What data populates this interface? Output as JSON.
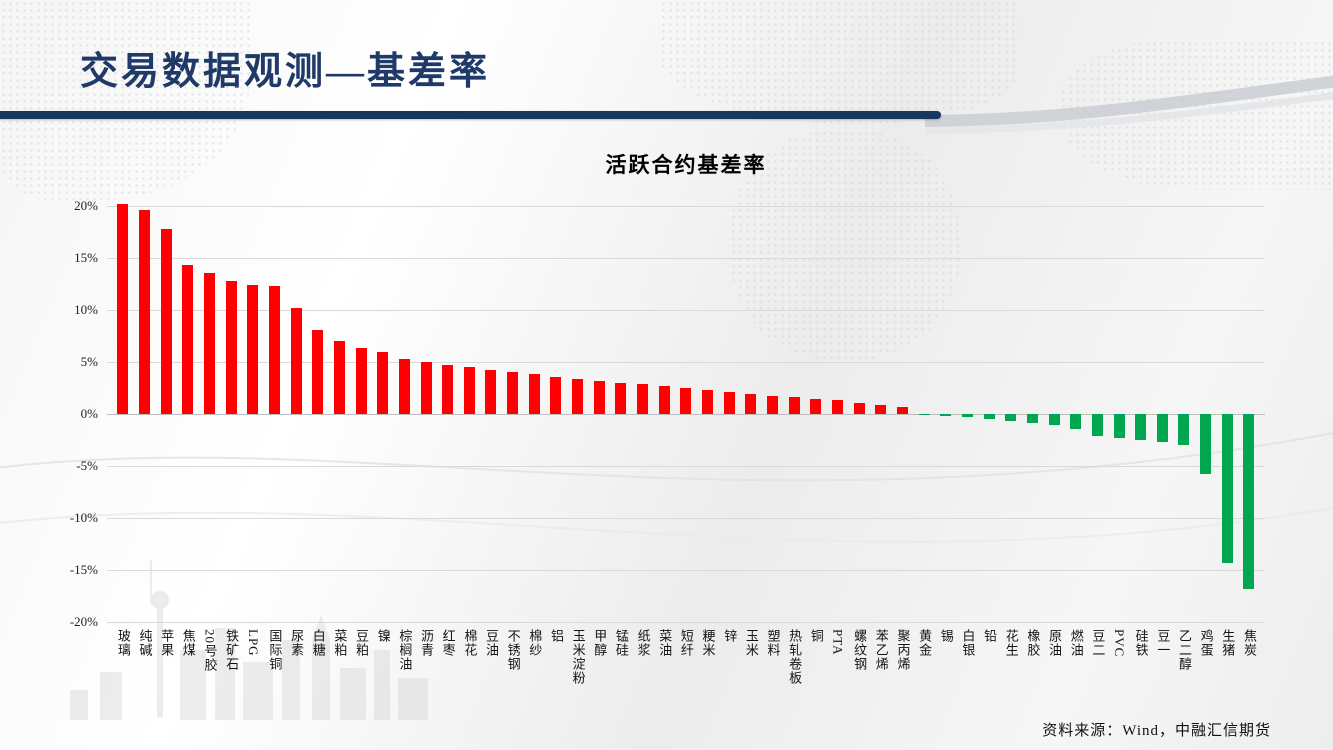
{
  "header": {
    "title": "交易数据观测—基差率"
  },
  "chart_data": {
    "type": "bar",
    "title": "活跃合约基差率",
    "categories": [
      "玻璃",
      "纯碱",
      "苹果",
      "焦煤",
      "20号胶",
      "铁矿石",
      "LPG",
      "国际铜",
      "尿素",
      "白糖",
      "菜粕",
      "豆粕",
      "镍",
      "棕榈油",
      "沥青",
      "红枣",
      "棉花",
      "豆油",
      "不锈钢",
      "棉纱",
      "铝",
      "玉米淀粉",
      "甲醇",
      "锰硅",
      "纸浆",
      "菜油",
      "短纤",
      "粳米",
      "锌",
      "玉米",
      "塑料",
      "热轧卷板",
      "铜",
      "PTA",
      "螺纹钢",
      "苯乙烯",
      "聚丙烯",
      "黄金",
      "锡",
      "白银",
      "铅",
      "花生",
      "橡胶",
      "原油",
      "燃油",
      "豆二",
      "PVC",
      "硅铁",
      "豆一",
      "乙二醇",
      "鸡蛋",
      "生猪",
      "焦炭"
    ],
    "values": [
      20.2,
      19.6,
      17.8,
      14.3,
      13.6,
      12.8,
      12.4,
      12.3,
      10.2,
      8.1,
      7.0,
      6.3,
      6.0,
      5.3,
      5.0,
      4.7,
      4.5,
      4.2,
      4.0,
      3.8,
      3.6,
      3.4,
      3.2,
      3.0,
      2.9,
      2.7,
      2.5,
      2.3,
      2.1,
      1.9,
      1.7,
      1.6,
      1.4,
      1.3,
      1.1,
      0.9,
      0.7,
      -0.1,
      -0.2,
      -0.3,
      -0.5,
      -0.7,
      -0.9,
      -1.1,
      -1.4,
      -2.1,
      -2.3,
      -2.5,
      -2.7,
      -3.0,
      -5.8,
      -14.3,
      -16.8
    ],
    "unit": "%",
    "ylim": [
      -20,
      20
    ],
    "ytick_labels": [
      "20%",
      "15%",
      "10%",
      "5%",
      "0%",
      "-5%",
      "-10%",
      "-15%",
      "-20%"
    ],
    "grid": true,
    "legend": false,
    "positive_color": "#FF0000",
    "negative_color": "#00A650"
  },
  "footer": {
    "source": "资料来源：Wind，中融汇信期货"
  },
  "colors": {
    "accent_bar": "#17375E",
    "title_text": "#1F3A68",
    "gridline": "#D9D9D9"
  }
}
